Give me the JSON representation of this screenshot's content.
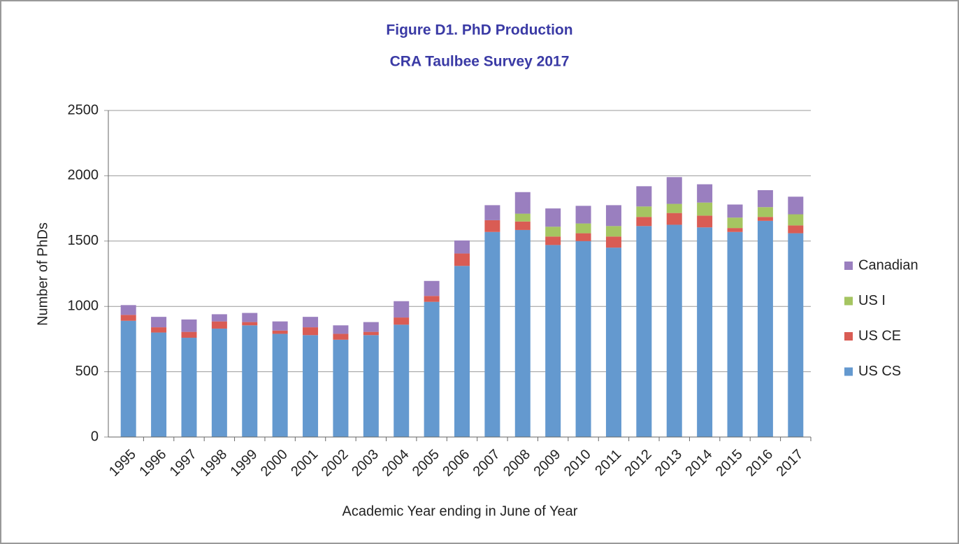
{
  "chart_data": {
    "type": "stacked_bar",
    "title": "Figure D1. PhD Production",
    "subtitle": "CRA Taulbee Survey 2017",
    "x_label": "Academic Year ending in June of Year",
    "y_label": "Number of PhDs",
    "categories": [
      "1995",
      "1996",
      "1997",
      "1998",
      "1999",
      "2000",
      "2001",
      "2002",
      "2003",
      "2004",
      "2005",
      "2006",
      "2007",
      "2008",
      "2009",
      "2010",
      "2011",
      "2012",
      "2013",
      "2014",
      "2015",
      "2016",
      "2017"
    ],
    "series": [
      {
        "name": "US CS",
        "color": "#6499cf",
        "values": [
          890,
          800,
          760,
          830,
          855,
          790,
          780,
          745,
          780,
          860,
          1035,
          1310,
          1570,
          1585,
          1470,
          1500,
          1450,
          1615,
          1625,
          1605,
          1570,
          1655,
          1560
        ]
      },
      {
        "name": "US CE",
        "color": "#d95c54",
        "values": [
          45,
          40,
          45,
          55,
          25,
          25,
          60,
          45,
          25,
          55,
          45,
          95,
          90,
          65,
          65,
          60,
          85,
          70,
          90,
          90,
          30,
          30,
          60
        ]
      },
      {
        "name": "US I",
        "color": "#a5c561",
        "values": [
          0,
          0,
          0,
          0,
          0,
          0,
          0,
          0,
          0,
          0,
          0,
          0,
          0,
          60,
          75,
          75,
          80,
          80,
          70,
          100,
          80,
          75,
          85
        ]
      },
      {
        "name": "Canadian",
        "color": "#9a7fbf",
        "values": [
          75,
          80,
          95,
          55,
          70,
          70,
          80,
          65,
          75,
          125,
          115,
          100,
          115,
          165,
          140,
          135,
          160,
          155,
          205,
          140,
          100,
          130,
          135
        ]
      }
    ],
    "ylim": [
      0,
      2500
    ],
    "yticks": [
      0,
      500,
      1000,
      1500,
      2000,
      2500
    ],
    "grid": true,
    "legend": "right"
  }
}
